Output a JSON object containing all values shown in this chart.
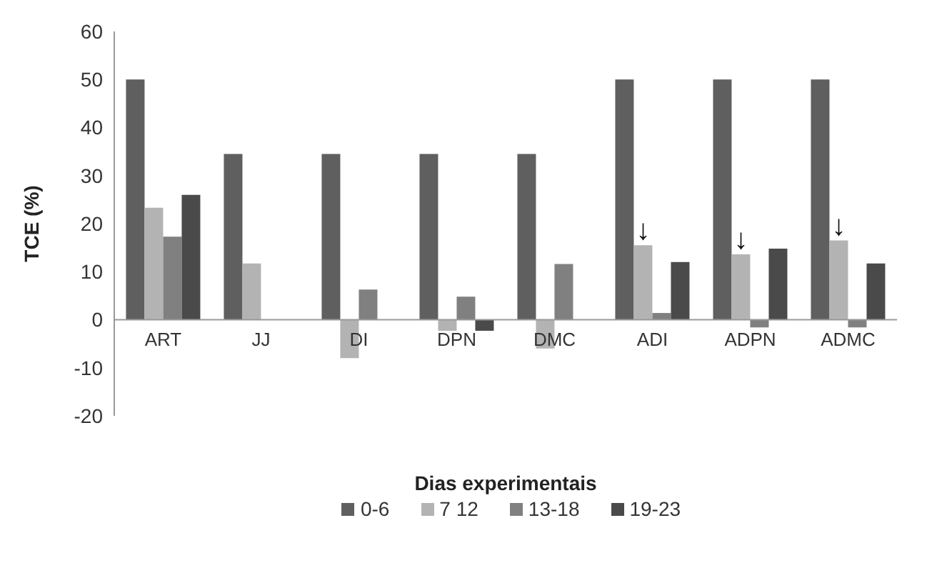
{
  "chart_data": {
    "type": "bar",
    "ylabel": "TCE (%)",
    "xlabel": "Dias experimentais",
    "categories": [
      "ART",
      "JJ",
      "DI",
      "DPN",
      "DMC",
      "ADI",
      "ADPN",
      "ADMC"
    ],
    "series": [
      {
        "name": "0-6",
        "color": "#5f5f5f",
        "values": [
          50,
          34.5,
          34.5,
          34.5,
          34.5,
          50,
          50,
          50
        ]
      },
      {
        "name": "7 12",
        "color": "#b3b3b3",
        "values": [
          23.3,
          11.7,
          -8,
          -2.3,
          -6,
          15.5,
          13.6,
          16.5
        ]
      },
      {
        "name": "13-18",
        "color": "#808080",
        "values": [
          17.3,
          null,
          6.3,
          4.8,
          11.6,
          1.4,
          -1.6,
          -1.6
        ]
      },
      {
        "name": "19-23",
        "color": "#4a4a4a",
        "values": [
          26,
          null,
          null,
          -2.3,
          null,
          12,
          14.8,
          11.7
        ]
      }
    ],
    "annotations": [
      {
        "text": "↓",
        "x": "ADI",
        "y": 15.5
      },
      {
        "text": "↓",
        "x": "ADPN",
        "y": 13.6
      },
      {
        "text": "↓",
        "x": "ADMC",
        "y": 16.5
      }
    ],
    "ylim": [
      -20,
      60
    ],
    "yticks": [
      -20,
      -10,
      0,
      10,
      20,
      30,
      40,
      50,
      60
    ],
    "grid": false,
    "legend": "bottom"
  }
}
